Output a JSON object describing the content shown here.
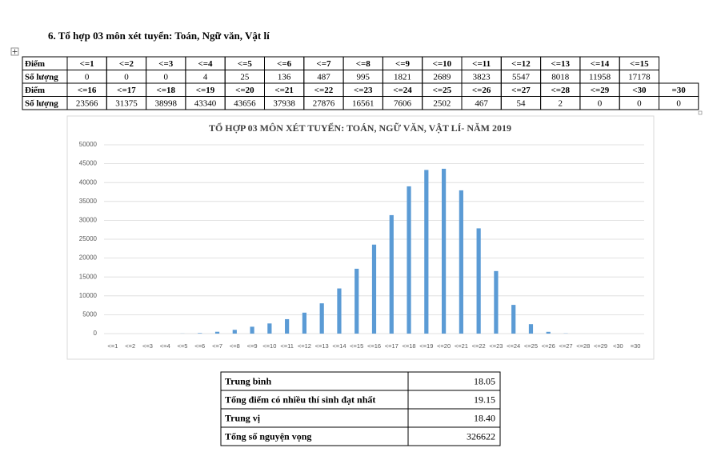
{
  "heading": "6. Tổ hợp 03 môn xét tuyển: Toán, Ngữ văn, Vật lí",
  "table": {
    "rows": [
      [
        "Điểm",
        "<=1",
        "<=2",
        "<=3",
        "<=4",
        "<=5",
        "<=6",
        "<=7",
        "<=8",
        "<=9",
        "<=10",
        "<=11",
        "<=12",
        "<=13",
        "<=14",
        "<=15"
      ],
      [
        "Số lượng",
        0,
        0,
        0,
        4,
        25,
        136,
        487,
        995,
        1821,
        2689,
        3823,
        5547,
        8018,
        11958,
        17178
      ],
      [
        "Điểm",
        "<=16",
        "<=17",
        "<=18",
        "<=19",
        "<=20",
        "<=21",
        "<=22",
        "<=23",
        "<=24",
        "<=25",
        "<=26",
        "<=27",
        "<=28",
        "<=29",
        "<30",
        "=30"
      ],
      [
        "Số lượng",
        23566,
        31375,
        38998,
        43340,
        43656,
        37938,
        27876,
        16561,
        7606,
        2502,
        467,
        54,
        2,
        0,
        0,
        0
      ]
    ]
  },
  "chart_data": {
    "type": "bar",
    "title": "TỔ HỢP 03 MÔN XÉT TUYỂN: TOÁN, NGỮ VĂN, VẬT LÍ- NĂM 2019",
    "categories": [
      "<=1",
      "<=2",
      "<=3",
      "<=4",
      "<=5",
      "<=6",
      "<=7",
      "<=8",
      "<=9",
      "<=10",
      "<=11",
      "<=12",
      "<=13",
      "<=14",
      "<=15",
      "<=16",
      "<=17",
      "<=18",
      "<=19",
      "<=20",
      "<=21",
      "<=22",
      "<=23",
      "<=24",
      "<=25",
      "<=26",
      "<=27",
      "<=28",
      "<=29",
      "<30",
      "=30"
    ],
    "values": [
      0,
      0,
      0,
      4,
      25,
      136,
      487,
      995,
      1821,
      2689,
      3823,
      5547,
      8018,
      11958,
      17178,
      23566,
      31375,
      38998,
      43340,
      43656,
      37938,
      27876,
      16561,
      7606,
      2502,
      467,
      54,
      2,
      0,
      0,
      0
    ],
    "color": "#5b9bd5",
    "ylim": [
      0,
      50000
    ],
    "yticks": [
      0,
      5000,
      10000,
      15000,
      20000,
      25000,
      30000,
      35000,
      40000,
      45000,
      50000
    ],
    "grid": true
  },
  "summary": {
    "rows": [
      [
        "Trung bình",
        "18.05"
      ],
      [
        "Tổng điểm có nhiều thí sinh đạt nhất",
        "19.15"
      ],
      [
        "Trung vị",
        "18.40"
      ],
      [
        "Tổng số nguyện vọng",
        "326622"
      ]
    ]
  }
}
